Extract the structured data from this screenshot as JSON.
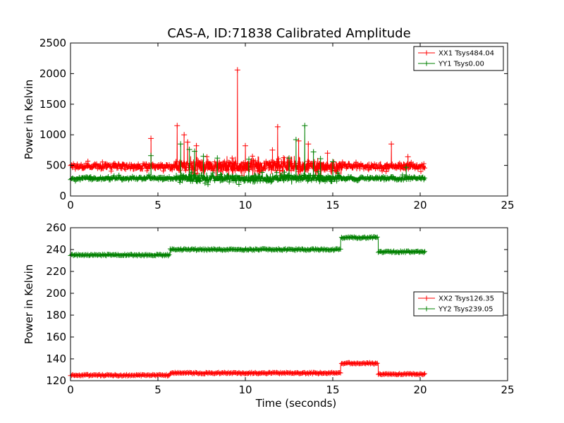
{
  "figure": {
    "title": "CAS-A, ID:71838 Calibrated Amplitude"
  },
  "chart_data": [
    {
      "type": "line",
      "xlabel": "",
      "ylabel": "Power in Kelvin",
      "xlim": [
        0,
        25
      ],
      "ylim": [
        0,
        2500
      ],
      "xticks": [
        0,
        5,
        10,
        15,
        20,
        25
      ],
      "yticks": [
        0,
        500,
        1000,
        1500,
        2000,
        2500
      ],
      "grid": false,
      "legend_position": "top-right",
      "series": [
        {
          "name": "XX1 Tsys484.04",
          "color": "#ff0000",
          "baseline": 484,
          "noise": 45,
          "x_range": [
            0,
            20.3
          ],
          "spikes": [
            [
              4.6,
              940
            ],
            [
              6.1,
              1150
            ],
            [
              6.5,
              1000
            ],
            [
              6.7,
              880
            ],
            [
              7.2,
              820
            ],
            [
              9.55,
              2060
            ],
            [
              10.0,
              820
            ],
            [
              11.55,
              750
            ],
            [
              11.85,
              1130
            ],
            [
              13.05,
              900
            ],
            [
              13.6,
              850
            ],
            [
              14.7,
              700
            ],
            [
              18.35,
              850
            ],
            [
              19.3,
              640
            ]
          ]
        },
        {
          "name": "YY1 Tsys0.00",
          "color": "#008000",
          "baseline": 290,
          "noise": 28,
          "x_range": [
            0,
            20.3
          ],
          "spikes": [
            [
              4.6,
              660
            ],
            [
              6.3,
              850
            ],
            [
              6.8,
              760
            ],
            [
              7.1,
              730
            ],
            [
              7.6,
              650
            ],
            [
              8.4,
              620
            ],
            [
              10.2,
              600
            ],
            [
              12.5,
              620
            ],
            [
              12.9,
              920
            ],
            [
              13.4,
              1150
            ],
            [
              13.9,
              720
            ],
            [
              14.3,
              610
            ],
            [
              15.0,
              560
            ],
            [
              19.2,
              470
            ]
          ]
        }
      ]
    },
    {
      "type": "line",
      "xlabel": "Time (seconds)",
      "ylabel": "Power in Kelvin",
      "xlim": [
        0,
        25
      ],
      "ylim": [
        120,
        260
      ],
      "xticks": [
        0,
        5,
        10,
        15,
        20,
        25
      ],
      "yticks": [
        120,
        140,
        160,
        180,
        200,
        220,
        240,
        260
      ],
      "grid": false,
      "legend_position": "center-right",
      "series": [
        {
          "name": "XX2 Tsys126.35",
          "color": "#ff0000",
          "noise": 0.7,
          "segments": [
            [
              0,
              5.7,
              125
            ],
            [
              5.7,
              15.45,
              127
            ],
            [
              15.45,
              17.6,
              136
            ],
            [
              17.6,
              20.3,
              126
            ]
          ]
        },
        {
          "name": "YY2 Tsys239.05",
          "color": "#008000",
          "noise": 0.8,
          "segments": [
            [
              0,
              5.7,
              235
            ],
            [
              5.7,
              15.45,
              240
            ],
            [
              15.45,
              17.6,
              251
            ],
            [
              17.6,
              20.3,
              238
            ]
          ]
        }
      ]
    }
  ]
}
